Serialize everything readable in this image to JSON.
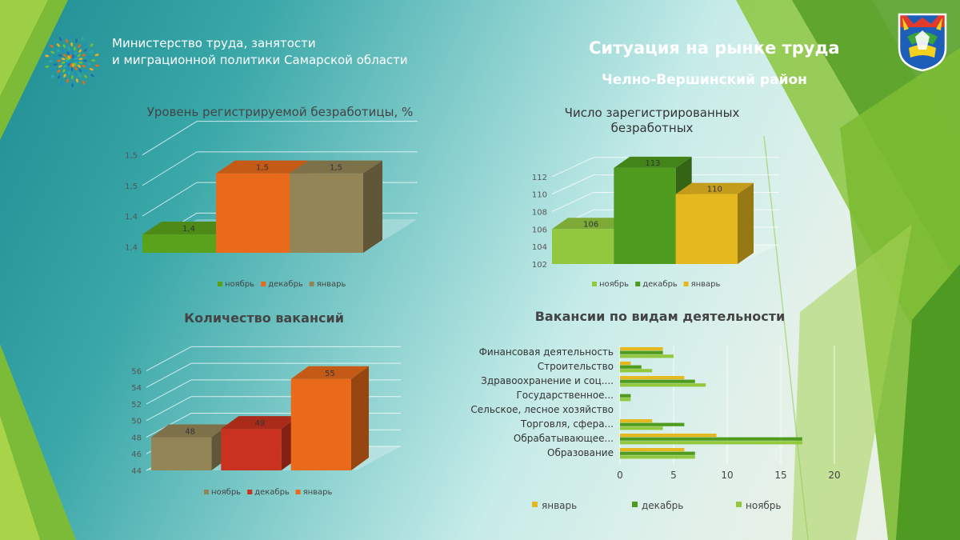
{
  "header": {
    "ministry_line1": "Министерство труда, занятости",
    "ministry_line2": "и миграционной политики  Самарской области",
    "title": "Ситуация на рынке труда",
    "subtitle": "Челно-Вершинский район"
  },
  "colors": {
    "green": "#5aa21c",
    "orange": "#e86a1a",
    "olive": "#938556",
    "light_green": "#92c83e",
    "mid_green": "#4f9b1e",
    "yellow": "#e6b820",
    "red": "#c8321e",
    "bar_orange": "#e86a1a"
  },
  "chart_data": [
    {
      "type": "bar",
      "title": "Уровень регистрируемой  безработицы, %",
      "categories": [
        "ноябрь",
        "декабрь",
        "январь"
      ],
      "values": [
        1.4,
        1.5,
        1.5
      ],
      "value_labels": [
        "1,4",
        "1,5",
        "1,5"
      ],
      "ylim": [
        1.37,
        1.54
      ],
      "y_ticks": [
        1.38,
        1.43,
        1.48,
        1.53
      ],
      "y_tick_labels": [
        "1,4",
        "1,4",
        "1,5",
        "1,5"
      ],
      "legend": [
        "ноябрь",
        "декабрь",
        "январь"
      ],
      "legend_position": "bottom",
      "grid": true
    },
    {
      "type": "bar",
      "title": "Число зарегистрированных безработных",
      "title_line1": "Число зарегистрированных",
      "title_line2": "безработных",
      "categories": [
        "ноябрь",
        "декабрь",
        "январь"
      ],
      "values": [
        106,
        113,
        110
      ],
      "value_labels": [
        "106",
        "113",
        "110"
      ],
      "ylim": [
        102,
        115
      ],
      "y_ticks": [
        102,
        104,
        106,
        108,
        110,
        112
      ],
      "y_tick_labels": [
        "102",
        "104",
        "106",
        "108",
        "110",
        "112"
      ],
      "legend": [
        "ноябрь",
        "декабрь",
        "январь"
      ],
      "legend_position": "bottom",
      "grid": true
    },
    {
      "type": "bar",
      "title": "Количество вакансий",
      "categories": [
        "ноябрь",
        "декабрь",
        "январь"
      ],
      "values": [
        48,
        49,
        55
      ],
      "value_labels": [
        "48",
        "49",
        "55"
      ],
      "ylim": [
        44,
        57
      ],
      "y_ticks": [
        44,
        46,
        48,
        50,
        52,
        54,
        56
      ],
      "y_tick_labels": [
        "44",
        "46",
        "48",
        "50",
        "52",
        "54",
        "56"
      ],
      "legend": [
        "ноябрь",
        "декабрь",
        "январь"
      ],
      "legend_position": "bottom",
      "grid": true
    },
    {
      "type": "bar",
      "orientation": "horizontal",
      "title": "Вакансии по видам деятельности",
      "categories": [
        "Финансовая  деятельность",
        "Строительство",
        "Здравоохранение  и соц....",
        "Государственное...",
        "Сельское,  лесное хозяйство",
        "Торговля,  сфера...",
        "Обрабатывающее...",
        "Образование"
      ],
      "series": [
        {
          "name": "январь",
          "values": [
            4,
            1,
            6,
            0,
            0,
            3,
            9,
            6
          ]
        },
        {
          "name": "декабрь",
          "values": [
            4,
            2,
            7,
            1,
            0,
            6,
            17,
            7
          ]
        },
        {
          "name": "ноябрь",
          "values": [
            5,
            3,
            8,
            1,
            0,
            4,
            17,
            7
          ]
        }
      ],
      "xlim": [
        0,
        20
      ],
      "x_ticks": [
        0,
        5,
        10,
        15,
        20
      ],
      "x_tick_labels": [
        "0",
        "5",
        "10",
        "15",
        "20"
      ],
      "legend_position": "bottom",
      "grid": true
    }
  ]
}
